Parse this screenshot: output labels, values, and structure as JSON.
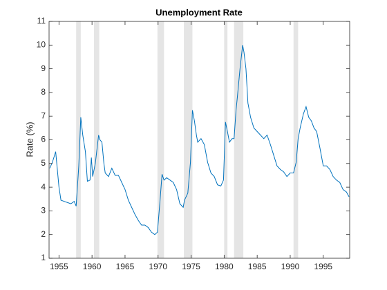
{
  "chart_data": {
    "type": "line",
    "title": "Unemployment Rate",
    "ylabel": "Rate (%)",
    "color": "#0072bd",
    "recession_color": "#e5e5e5",
    "xlim": [
      1953.5,
      1999
    ],
    "xticks": [
      1955,
      1960,
      1965,
      1970,
      1975,
      1980,
      1985,
      1990,
      1995
    ],
    "ylim": [
      1,
      11
    ],
    "yticks": [
      1,
      2,
      3,
      4,
      5,
      6,
      7,
      8,
      9,
      10,
      11
    ],
    "recessions": [
      [
        1957.6,
        1958.3
      ],
      [
        1960.3,
        1961.1
      ],
      [
        1969.9,
        1970.9
      ],
      [
        1973.9,
        1975.2
      ],
      [
        1980.0,
        1980.5
      ],
      [
        1981.5,
        1982.9
      ],
      [
        1990.5,
        1991.2
      ]
    ],
    "x": [
      1953.6,
      1954.0,
      1954.5,
      1955.0,
      1955.3,
      1955.8,
      1956.3,
      1956.8,
      1957.3,
      1957.6,
      1958.0,
      1958.3,
      1958.6,
      1959.0,
      1959.3,
      1959.7,
      1959.9,
      1960.1,
      1960.5,
      1961.0,
      1961.2,
      1961.5,
      1961.8,
      1962.0,
      1962.5,
      1963.0,
      1963.5,
      1964.0,
      1964.5,
      1965.0,
      1965.5,
      1966.0,
      1966.5,
      1967.0,
      1967.5,
      1968.0,
      1968.5,
      1969.0,
      1969.5,
      1969.9,
      1970.3,
      1970.6,
      1970.9,
      1971.3,
      1971.8,
      1972.3,
      1972.8,
      1973.3,
      1973.8,
      1974.0,
      1974.5,
      1974.9,
      1975.2,
      1975.5,
      1975.8,
      1976.0,
      1976.5,
      1977.0,
      1977.5,
      1978.0,
      1978.5,
      1979.0,
      1979.5,
      1979.9,
      1980.2,
      1980.5,
      1980.8,
      1981.2,
      1981.5,
      1981.8,
      1982.0,
      1982.4,
      1982.8,
      1983.0,
      1983.3,
      1983.6,
      1984.0,
      1984.5,
      1985.0,
      1985.5,
      1986.0,
      1986.5,
      1987.0,
      1987.5,
      1988.0,
      1988.5,
      1989.0,
      1989.5,
      1990.0,
      1990.5,
      1990.9,
      1991.2,
      1991.5,
      1992.0,
      1992.4,
      1992.8,
      1993.2,
      1993.6,
      1994.0,
      1994.5,
      1995.0,
      1995.5,
      1996.0,
      1996.5,
      1997.0,
      1997.5,
      1998.0,
      1998.5,
      1998.9
    ],
    "values": [
      4.8,
      5.05,
      5.5,
      4.0,
      3.45,
      3.4,
      3.35,
      3.3,
      3.4,
      3.2,
      4.9,
      6.95,
      6.2,
      5.5,
      4.25,
      4.3,
      5.25,
      4.45,
      5.0,
      6.2,
      6.0,
      5.9,
      5.0,
      4.6,
      4.45,
      4.8,
      4.5,
      4.5,
      4.2,
      3.9,
      3.45,
      3.15,
      2.85,
      2.6,
      2.4,
      2.4,
      2.3,
      2.1,
      2.0,
      2.1,
      3.45,
      4.55,
      4.3,
      4.4,
      4.3,
      4.2,
      3.9,
      3.3,
      3.15,
      3.45,
      3.75,
      5.05,
      7.25,
      6.8,
      6.2,
      5.9,
      6.05,
      5.8,
      5.05,
      4.6,
      4.45,
      4.1,
      4.05,
      4.3,
      6.75,
      6.35,
      5.9,
      6.05,
      6.05,
      7.25,
      7.8,
      9.0,
      10.0,
      9.7,
      9.0,
      7.55,
      6.95,
      6.5,
      6.35,
      6.2,
      6.05,
      6.2,
      5.8,
      5.35,
      4.9,
      4.75,
      4.65,
      4.45,
      4.6,
      4.6,
      5.05,
      6.05,
      6.5,
      7.1,
      7.4,
      6.95,
      6.8,
      6.5,
      6.35,
      5.65,
      4.9,
      4.9,
      4.75,
      4.45,
      4.3,
      4.2,
      3.9,
      3.8,
      3.6
    ]
  }
}
